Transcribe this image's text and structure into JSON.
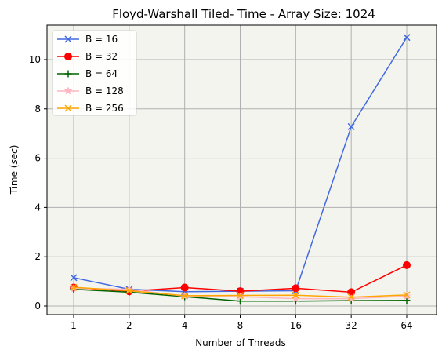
{
  "chart_data": {
    "type": "line",
    "title": "Floyd-Warshall Tiled- Time - Array Size: 1024",
    "xlabel": "Number of Threads",
    "ylabel_prefix": "Time (",
    "ylabel_unit": "sec",
    "ylabel_suffix": ")",
    "categories": [
      "1",
      "2",
      "4",
      "8",
      "16",
      "32",
      "64"
    ],
    "yticks": [
      "0",
      "2",
      "4",
      "6",
      "8",
      "10"
    ],
    "ylim": [
      -0.35,
      11.4
    ],
    "grid": true,
    "legend_position": "upper-left",
    "series": [
      {
        "name": "B = 16",
        "color": "#4169e1",
        "marker": "x",
        "values": [
          1.15,
          0.68,
          0.58,
          0.6,
          0.62,
          7.28,
          10.9
        ]
      },
      {
        "name": "B = 32",
        "color": "#ff0000",
        "marker": "circle",
        "values": [
          0.75,
          0.6,
          0.75,
          0.6,
          0.72,
          0.56,
          1.66
        ]
      },
      {
        "name": "B = 64",
        "color": "#006400",
        "marker": "plus",
        "values": [
          0.68,
          0.56,
          0.38,
          0.2,
          0.2,
          0.22,
          0.23
        ]
      },
      {
        "name": "B = 128",
        "color": "#ffb6c1",
        "marker": "star",
        "values": [
          0.72,
          0.68,
          0.4,
          0.38,
          0.3,
          0.3,
          0.4
        ]
      },
      {
        "name": "B = 256",
        "color": "#ffa500",
        "marker": "x",
        "values": [
          0.76,
          0.62,
          0.42,
          0.43,
          0.44,
          0.36,
          0.45
        ]
      }
    ]
  }
}
